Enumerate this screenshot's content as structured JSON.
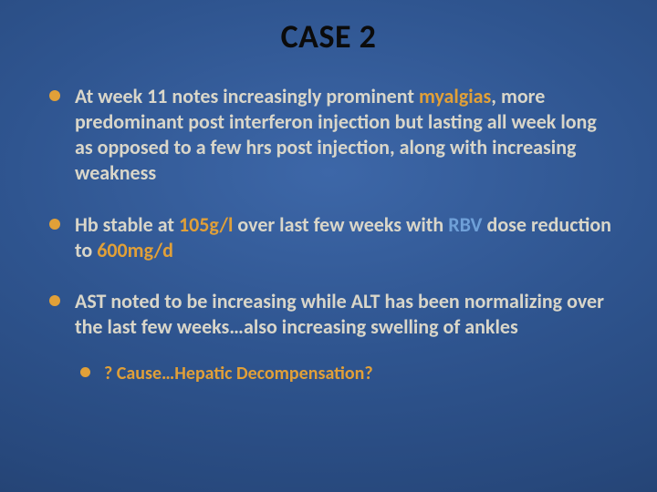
{
  "slide": {
    "title": "CASE 2",
    "title_fontsize": 36,
    "body_fontsize": 22,
    "sub_fontsize": 20,
    "background_gradient": {
      "inner": "#3d67a8",
      "mid": "#2f5590",
      "outer": "#213d6a"
    },
    "bullet_color": "#e1a038",
    "text_color": "#d9d6c9",
    "title_color": "#0b0b0b",
    "highlight_colors": {
      "orange": "#e1a038",
      "blue": "#6fa0d8"
    },
    "bullets": [
      {
        "runs": [
          {
            "t": "At week 11 notes increasingly prominent "
          },
          {
            "t": "myalgias",
            "c": "orange"
          },
          {
            "t": ", more predominant post interferon injection but lasting all week long as opposed to a few hrs post injection, along with increasing weakness"
          }
        ]
      },
      {
        "runs": [
          {
            "t": "Hb stable at "
          },
          {
            "t": "105g/l",
            "c": "orange"
          },
          {
            "t": " over last few weeks with "
          },
          {
            "t": "RBV",
            "c": "blue"
          },
          {
            "t": " dose reduction to "
          },
          {
            "t": "600mg/d",
            "c": "orange"
          }
        ]
      },
      {
        "runs": [
          {
            "t": "AST noted to be increasing while ALT has been normalizing over the last few weeks…also increasing swelling of ankles"
          }
        ],
        "sub": [
          {
            "runs": [
              {
                "t": "? Cause…Hepatic Decompensation?",
                "c": "orange"
              }
            ]
          }
        ]
      }
    ]
  }
}
